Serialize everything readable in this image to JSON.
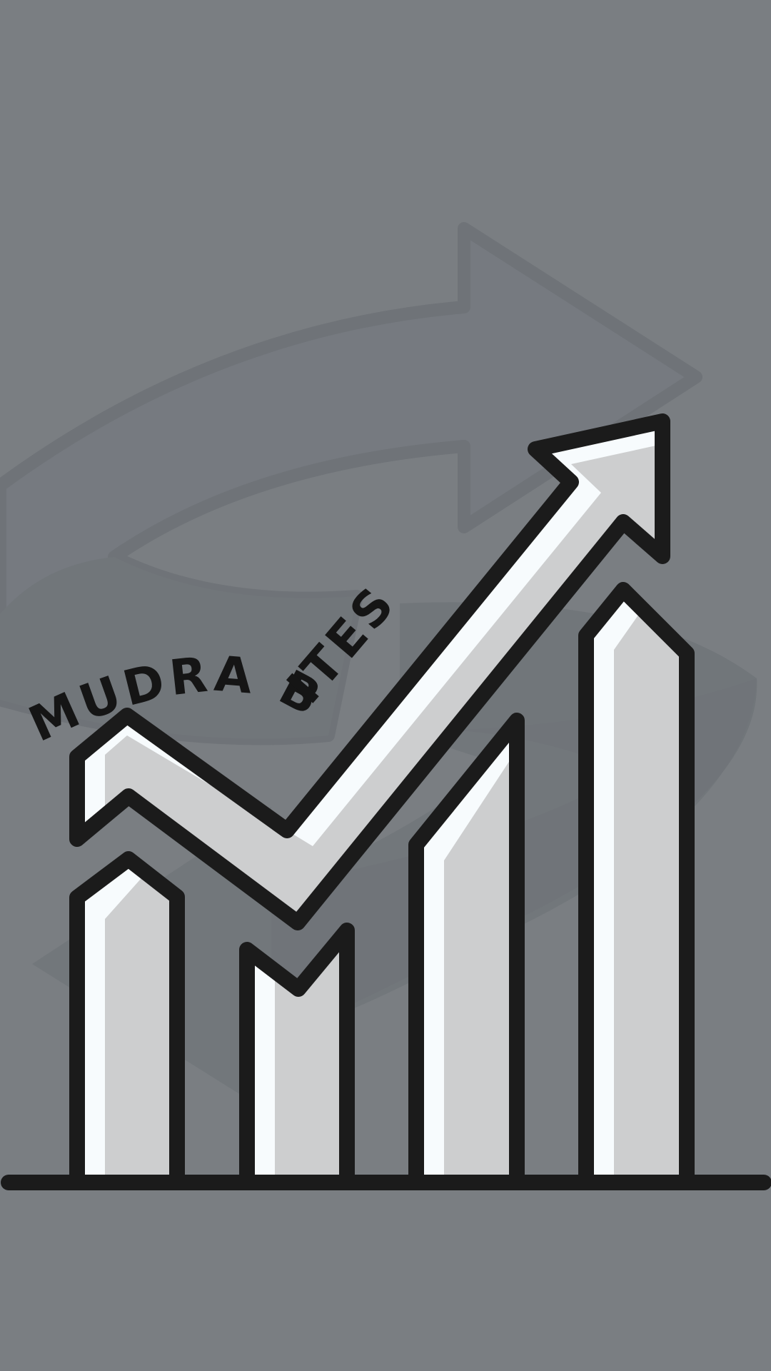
{
  "logo": {
    "brand_name": "MUDRA BITES",
    "icon": "growth-chart-arrow-icon"
  },
  "colors": {
    "background": "#7a7e82",
    "outline": "#1b1b1b",
    "bar_fill": "#cdcecf",
    "highlight": "#f7fbfd",
    "watermark_shape": "#6b7075"
  }
}
